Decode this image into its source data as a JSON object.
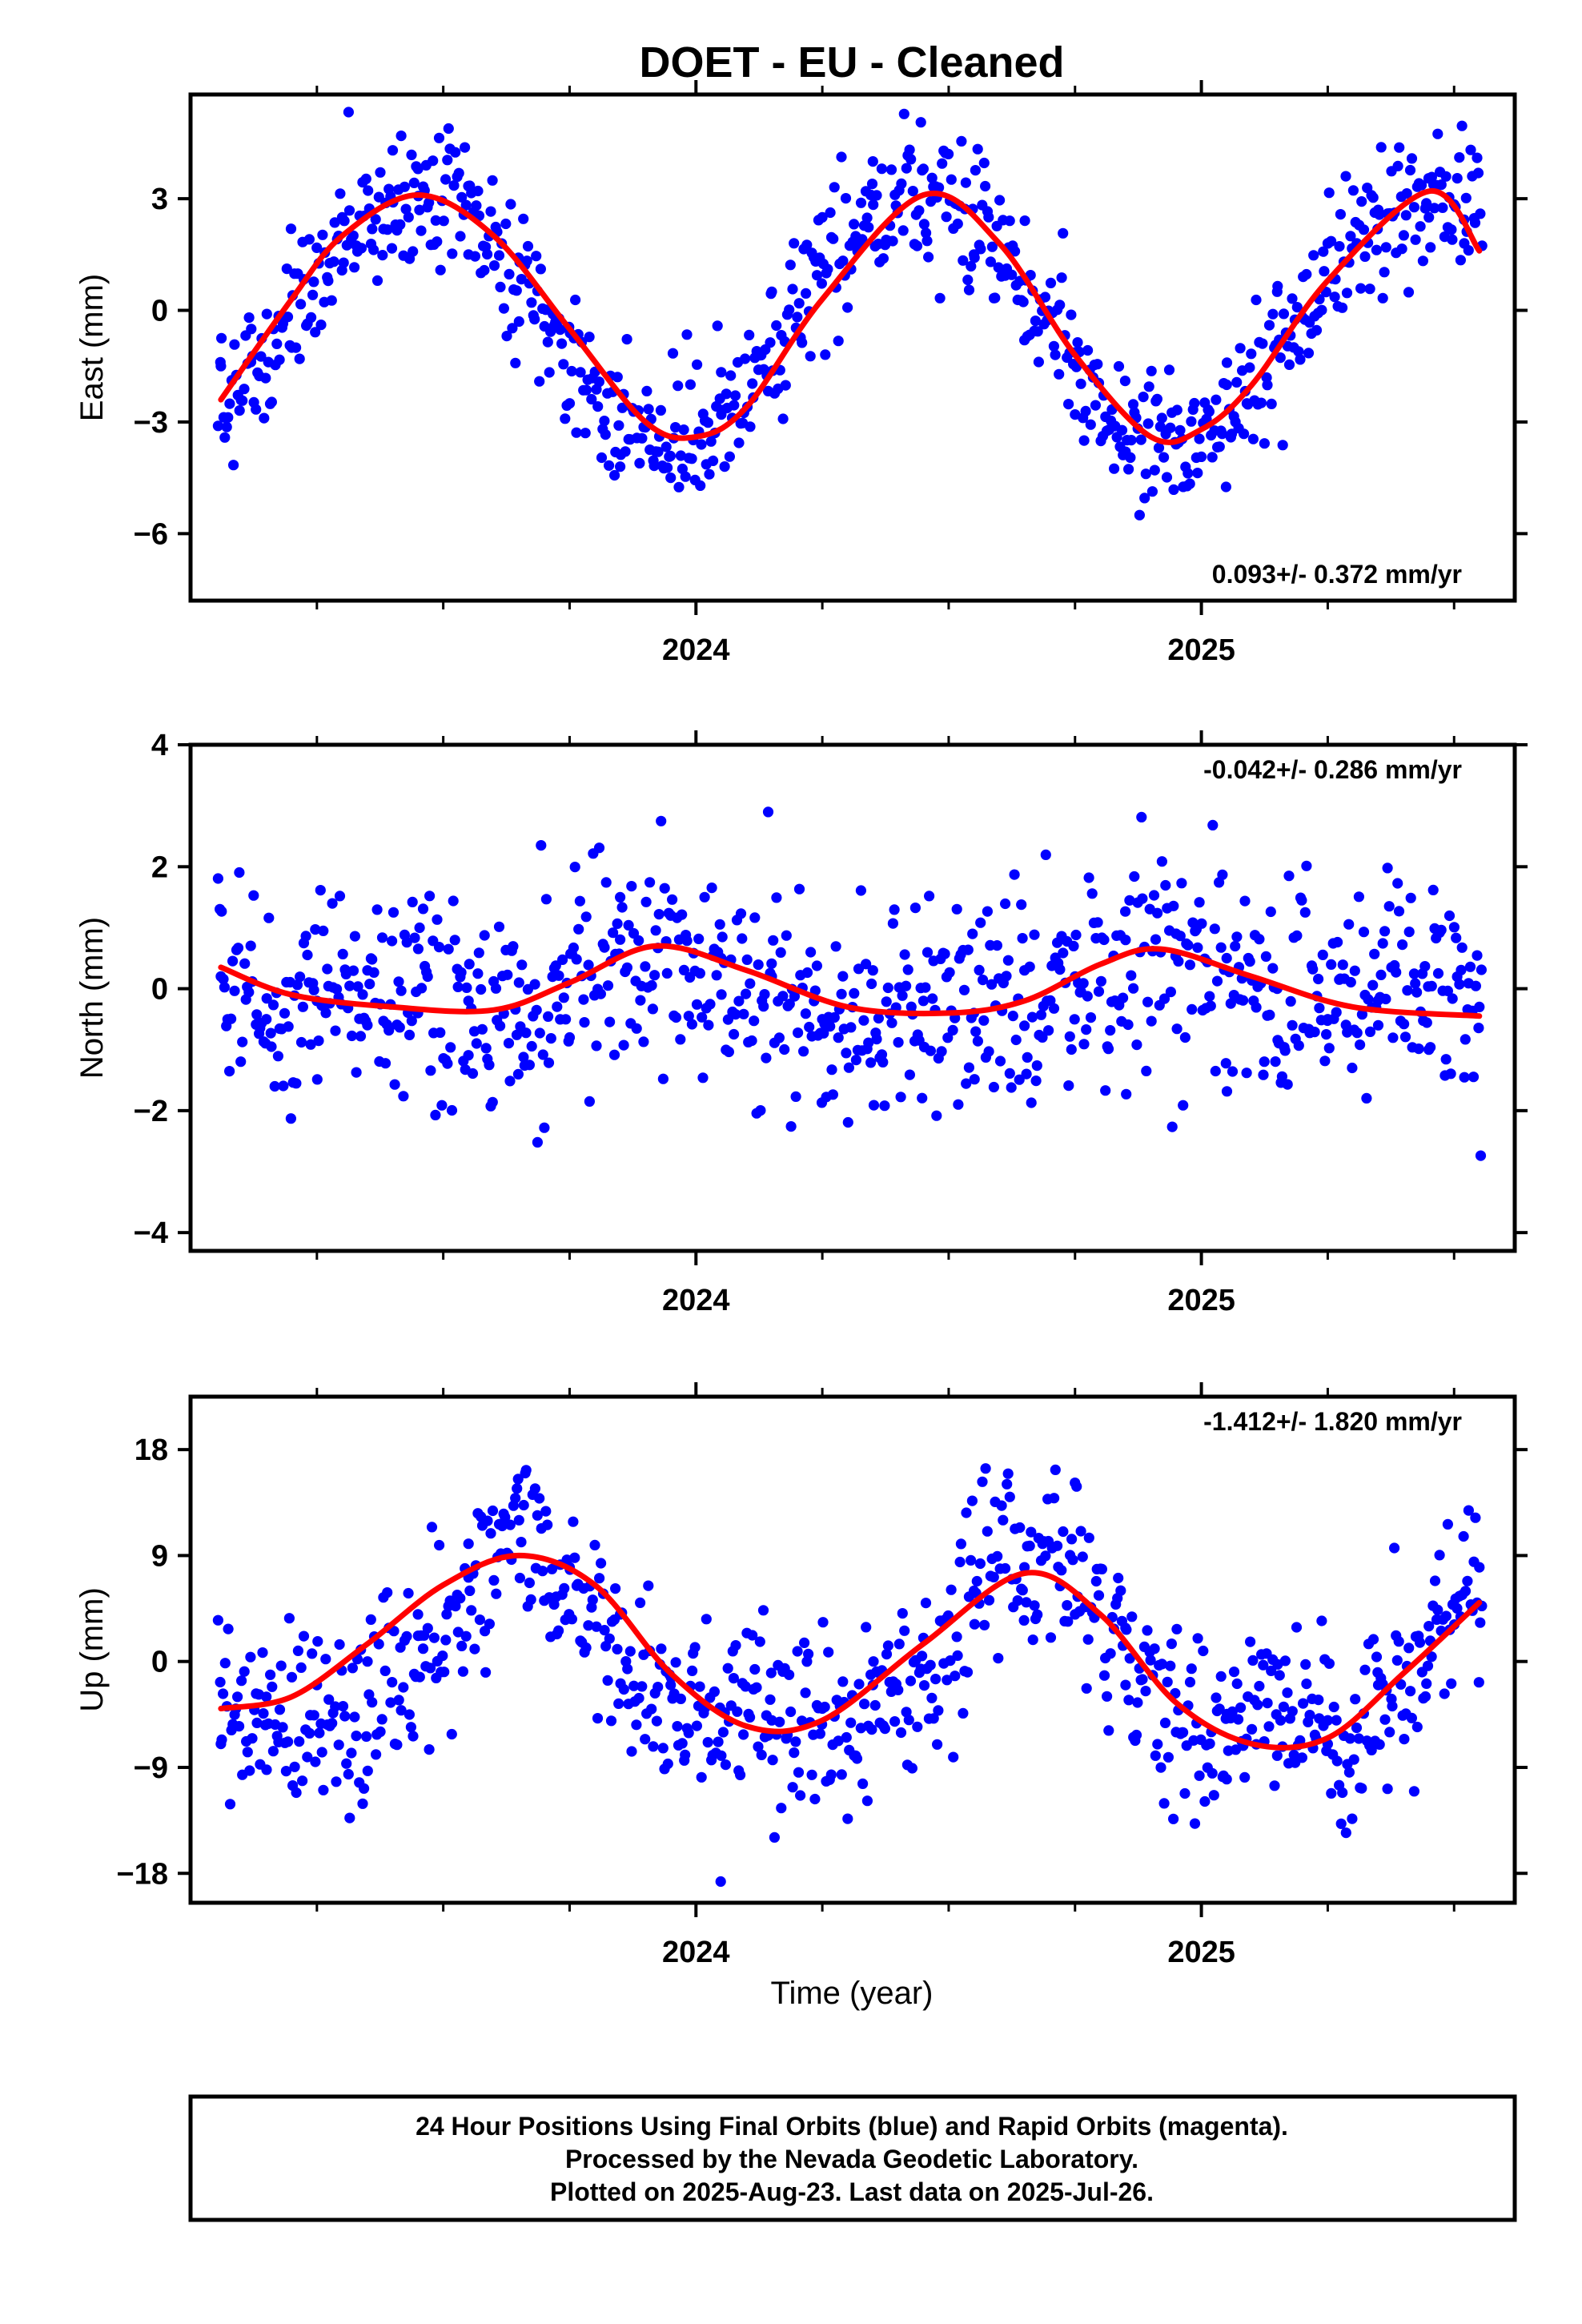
{
  "title": "DOET  - EU - Cleaned",
  "xlabel": "Time (year)",
  "colors": {
    "data": "#0000ff",
    "fit": "#ff0000",
    "frame": "#000000"
  },
  "footer": {
    "line1": "24 Hour Positions Using Final Orbits (blue) and Rapid Orbits (magenta).",
    "line2": "Processed by the Nevada Geodetic Laboratory.",
    "line3": "Plotted on 2025-Aug-23. Last data on 2025-Jul-26."
  },
  "chart_data": [
    {
      "type": "scatter",
      "component": "east",
      "ylabel": "East (mm)",
      "rate": "0.093+/- 0.372 mm/yr",
      "rate_position": "bottom-right",
      "xlim": [
        2023.0,
        2025.62
      ],
      "ylim": [
        -7.8,
        5.8
      ],
      "xticks": [
        2024,
        2025
      ],
      "xtick_labels": [
        "2024",
        "2025"
      ],
      "xminor": [
        2023.25,
        2023.5,
        2023.75,
        2024.25,
        2024.5,
        2024.75,
        2025.25,
        2025.5
      ],
      "yticks": [
        -6,
        -3,
        0,
        3
      ],
      "ytick_labels": [
        "−6",
        "−3",
        "0",
        "3"
      ],
      "fit": {
        "offset": -0.2,
        "amp1": 3.3,
        "t1": 2023.45,
        "amp2": 0,
        "t2": 0,
        "sine_end": 0
      },
      "scatter": {
        "sd": 0.9,
        "seed": 7
      },
      "series": [
        {
          "name": "Final Orbits",
          "role": "daily positions",
          "x": [
            2023.06,
            2023.12,
            2023.2,
            2023.3,
            2023.4,
            2023.45,
            2023.55,
            2023.65,
            2023.75,
            2023.85,
            2023.95,
            2024.05,
            2024.15,
            2024.25,
            2024.35,
            2024.45,
            2024.55,
            2024.65,
            2024.75,
            2024.85,
            2024.95,
            2025.05,
            2025.15,
            2025.25,
            2025.35,
            2025.45,
            2025.52
          ],
          "y": [
            -1.5,
            -0.5,
            -1.0,
            2.5,
            4.3,
            3.8,
            1.5,
            -0.3,
            -2.5,
            -4.2,
            -4.5,
            -2.8,
            0.5,
            2.5,
            4.0,
            3.8,
            1.5,
            -0.8,
            -2.8,
            -3.8,
            -3.6,
            -2.0,
            0.5,
            1.8,
            2.7,
            2.5,
            1.8
          ]
        },
        {
          "name": "Model fit",
          "role": "fitted trend with seasonal terms",
          "x": [
            2023.06,
            2023.2,
            2023.3,
            2023.45,
            2023.6,
            2023.75,
            2023.9,
            2024.0,
            2024.1,
            2024.25,
            2024.45,
            2024.6,
            2024.75,
            2024.9,
            2025.0,
            2025.1,
            2025.25,
            2025.45,
            2025.55
          ],
          "y": [
            -2.4,
            0.3,
            2.0,
            3.1,
            2.0,
            -0.5,
            -3.0,
            -3.4,
            -2.6,
            0.3,
            3.1,
            1.8,
            -1.2,
            -3.4,
            -3.2,
            -2.0,
            0.8,
            3.2,
            1.6
          ]
        }
      ]
    },
    {
      "type": "scatter",
      "component": "north",
      "ylabel": "North (mm)",
      "rate": "-0.042+/- 0.286 mm/yr",
      "rate_position": "top-right",
      "xlim": [
        2023.0,
        2025.62
      ],
      "ylim": [
        -4.3,
        4.0
      ],
      "xticks": [
        2024,
        2025
      ],
      "xtick_labels": [
        "2024",
        "2025"
      ],
      "xminor": [
        2023.25,
        2023.5,
        2023.75,
        2024.25,
        2024.5,
        2024.75,
        2025.25,
        2025.5
      ],
      "yticks": [
        -4,
        -2,
        0,
        2,
        4
      ],
      "ytick_labels": [
        "−4",
        "−2",
        "0",
        "2",
        "4"
      ],
      "fit": {
        "offset": 0.0,
        "amp1": 0.35,
        "t1": 2023.92,
        "amp2": 0.2,
        "t2": 2023.92,
        "sine_end": 0
      },
      "scatter": {
        "sd": 0.95,
        "seed": 19
      },
      "series": [
        {
          "name": "Final Orbits",
          "role": "daily positions",
          "x": [
            2023.06,
            2023.15,
            2023.25,
            2023.35,
            2023.45,
            2023.55,
            2023.65,
            2023.75,
            2023.85,
            2023.95,
            2024.05,
            2024.15,
            2024.25,
            2024.35,
            2024.45,
            2024.55,
            2024.65,
            2024.75,
            2024.85,
            2024.95,
            2025.05,
            2025.15,
            2025.25,
            2025.35,
            2025.45,
            2025.55
          ],
          "y": [
            0.2,
            -0.5,
            -0.2,
            0.3,
            -0.4,
            -0.2,
            0.1,
            -0.8,
            1.5,
            1.2,
            0.5,
            0.2,
            -0.5,
            0.3,
            -0.2,
            -0.4,
            0.3,
            0.2,
            0.8,
            0.9,
            0.5,
            0.0,
            -0.5,
            -0.6,
            -1.0,
            -0.3
          ]
        },
        {
          "name": "Model fit",
          "role": "fitted trend with seasonal terms",
          "x": [
            2023.06,
            2023.2,
            2023.4,
            2023.6,
            2023.75,
            2023.92,
            2024.1,
            2024.3,
            2024.5,
            2024.65,
            2024.8,
            2024.92,
            2025.1,
            2025.3,
            2025.55
          ],
          "y": [
            0.35,
            -0.1,
            -0.3,
            -0.35,
            0.1,
            0.7,
            0.3,
            -0.3,
            -0.4,
            -0.2,
            0.4,
            0.65,
            0.2,
            -0.3,
            -0.45
          ]
        }
      ]
    },
    {
      "type": "scatter",
      "component": "up",
      "ylabel": "Up (mm)",
      "rate": "-1.412+/- 1.820 mm/yr",
      "rate_position": "top-right",
      "xlim": [
        2023.0,
        2025.62
      ],
      "ylim": [
        -20.5,
        22.5
      ],
      "xticks": [
        2024,
        2025
      ],
      "xtick_labels": [
        "2024",
        "2025"
      ],
      "xminor": [
        2023.25,
        2023.5,
        2023.75,
        2024.25,
        2024.5,
        2024.75,
        2025.25,
        2025.5
      ],
      "yticks": [
        -18,
        -9,
        0,
        9,
        18
      ],
      "ytick_labels": [
        "−18",
        "−9",
        "0",
        "9",
        "18"
      ],
      "fit": {
        "offset": 0.0,
        "amp1": 7.0,
        "t1": 2023.65,
        "amp2": 2.4,
        "t2": 2023.65,
        "sine_end": 5.0
      },
      "scatter": {
        "sd": 4.0,
        "seed": 31
      },
      "series": [
        {
          "name": "Final Orbits",
          "role": "daily positions",
          "x": [
            2023.06,
            2023.15,
            2023.25,
            2023.35,
            2023.45,
            2023.55,
            2023.65,
            2023.75,
            2023.85,
            2023.95,
            2024.05,
            2024.15,
            2024.25,
            2024.35,
            2024.45,
            2024.55,
            2024.65,
            2024.75,
            2024.85,
            2024.95,
            2025.05,
            2025.15,
            2025.25,
            2025.35,
            2025.45,
            2025.55
          ],
          "y": [
            -7.0,
            -3.0,
            -2.0,
            0.0,
            4.0,
            10.0,
            12.0,
            8.0,
            4.0,
            -2.0,
            -8.0,
            -5.0,
            -4.0,
            -2.0,
            2.0,
            6.0,
            8.0,
            4.0,
            -2.0,
            -6.0,
            -10.0,
            -8.0,
            -5.0,
            -2.0,
            3.0,
            8.0
          ]
        },
        {
          "name": "Model fit",
          "role": "fitted trend with seasonal terms",
          "x": [
            2023.06,
            2023.2,
            2023.35,
            2023.5,
            2023.65,
            2023.8,
            2023.95,
            2024.1,
            2024.25,
            2024.45,
            2024.65,
            2024.8,
            2024.95,
            2025.1,
            2025.25,
            2025.4,
            2025.55
          ],
          "y": [
            -4.0,
            -3.0,
            1.5,
            6.5,
            9.0,
            6.5,
            -1.0,
            -5.5,
            -5.0,
            1.5,
            7.5,
            4.0,
            -3.5,
            -7.0,
            -6.5,
            -1.0,
            5.0
          ]
        }
      ]
    }
  ]
}
